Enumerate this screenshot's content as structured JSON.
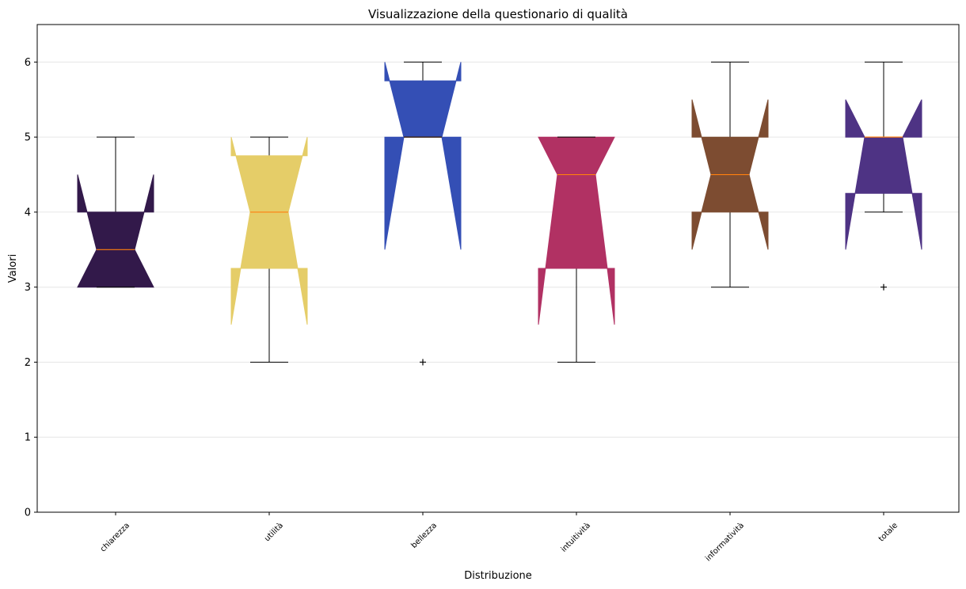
{
  "chart_data": {
    "type": "boxplot",
    "title": "Visualizzazione della questionario di qualità",
    "xlabel": "Distribuzione",
    "ylabel": "Valori",
    "ylim": [
      0,
      6.5
    ],
    "yticks": [
      0,
      1,
      2,
      3,
      4,
      5,
      6
    ],
    "grid": "y",
    "notched": true,
    "median_color": "#ff7f0e",
    "categories": [
      "chiarezza",
      "utilità",
      "bellezza",
      "intuitività",
      "informatività",
      "totale"
    ],
    "boxes": [
      {
        "category": "chiarezza",
        "color": "#32194a",
        "whisker_low": 3,
        "q1": 3,
        "median": 3.5,
        "q3": 4,
        "whisker_high": 5,
        "notch_low": 3,
        "notch_high": 4.5,
        "fliers": []
      },
      {
        "category": "utilità",
        "color": "#e5cd68",
        "whisker_low": 2,
        "q1": 3.25,
        "median": 4,
        "q3": 4.75,
        "whisker_high": 5,
        "notch_low": 2.5,
        "notch_high": 5,
        "fliers": []
      },
      {
        "category": "bellezza",
        "color": "#344fb5",
        "whisker_low": 5,
        "q1": 5,
        "median": 5,
        "q3": 5.75,
        "whisker_high": 6,
        "notch_low": 3.5,
        "notch_high": 6,
        "fliers": [
          2
        ]
      },
      {
        "category": "intuitività",
        "color": "#b13163",
        "whisker_low": 2,
        "q1": 3.25,
        "median": 4.5,
        "q3": 5,
        "whisker_high": 5,
        "notch_low": 2.5,
        "notch_high": 5,
        "fliers": []
      },
      {
        "category": "informatività",
        "color": "#7d4c31",
        "whisker_low": 3,
        "q1": 4,
        "median": 4.5,
        "q3": 5,
        "whisker_high": 6,
        "notch_low": 3.5,
        "notch_high": 5.5,
        "fliers": []
      },
      {
        "category": "totale",
        "color": "#4e3384",
        "whisker_low": 4,
        "q1": 4.25,
        "median": 5,
        "q3": 5,
        "whisker_high": 6,
        "notch_low": 3.5,
        "notch_high": 5.5,
        "fliers": [
          3
        ]
      }
    ]
  }
}
